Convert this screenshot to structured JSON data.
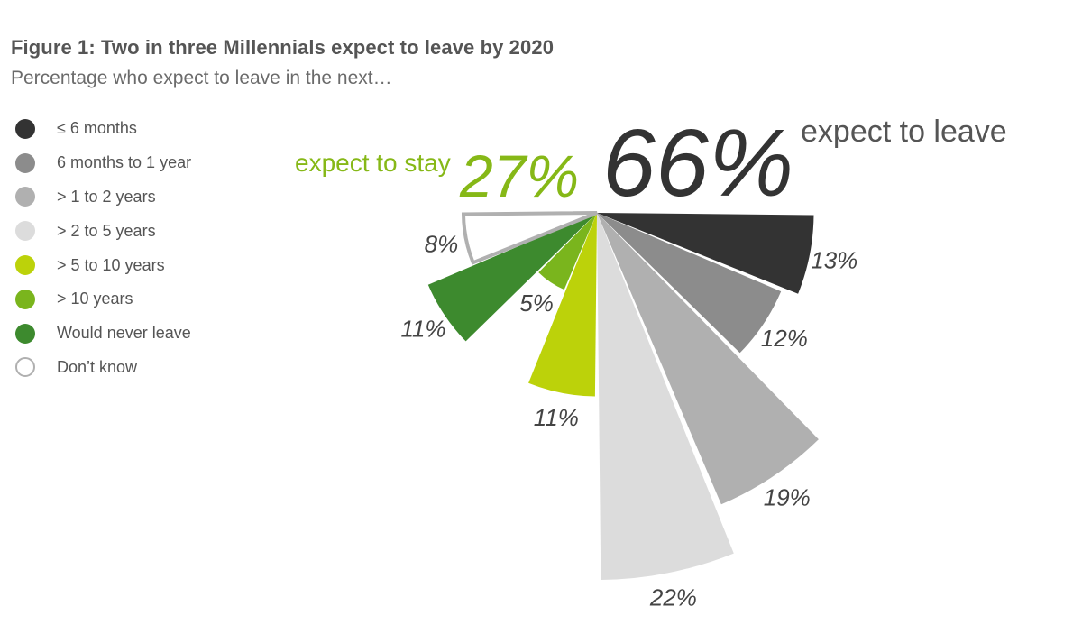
{
  "header": {
    "title": "Figure 1: Two in three Millennials expect to leave by 2020",
    "subtitle": "Percentage who expect to leave in the next…"
  },
  "chart_data": {
    "type": "pie",
    "variant": "polar-area",
    "categories": [
      "≤ 6 months",
      "6 months to 1 year",
      "> 1 to 2 years",
      "> 2 to 5 years",
      "> 5 to 10 years",
      "> 10 years",
      "Would never leave",
      "Don’t know"
    ],
    "values": [
      13,
      12,
      19,
      22,
      11,
      5,
      11,
      8
    ],
    "value_labels": [
      "13%",
      "12%",
      "19%",
      "22%",
      "11%",
      "5%",
      "11%",
      "8%"
    ],
    "colors": [
      "#333333",
      "#8c8c8c",
      "#b0b0b0",
      "#dcdcdc",
      "#bcd20a",
      "#7ab51d",
      "#3d8a2e",
      "#ffffff"
    ],
    "legend_position": "left",
    "annotations": {
      "leave_value": "66%",
      "leave_text": "expect to leave",
      "stay_value": "27%",
      "stay_text": "expect to stay"
    }
  }
}
